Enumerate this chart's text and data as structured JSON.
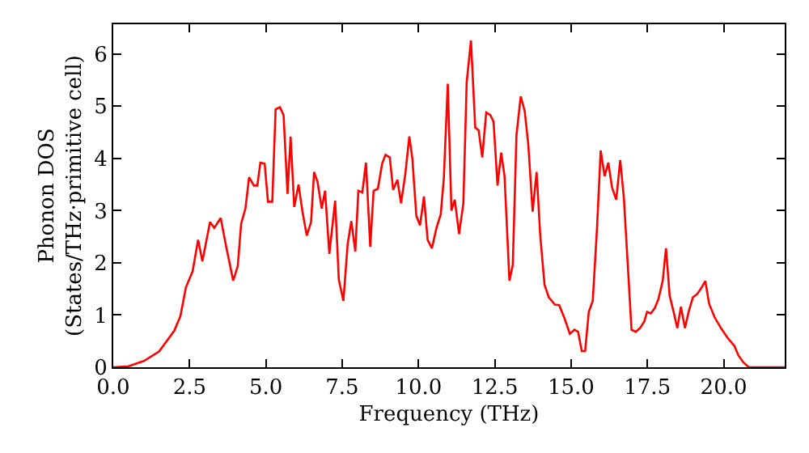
{
  "chart_data": {
    "type": "line",
    "xlabel": "Frequency (THz)",
    "ylabel": "Phonon DOS\n(States/THz·primitive cell)",
    "xlim": [
      0,
      22.0
    ],
    "ylim": [
      0,
      6.57
    ],
    "xticks": [
      {
        "value": 0,
        "label": "0.0"
      },
      2.5,
      {
        "value": 5,
        "label": "5.0"
      },
      7.5,
      {
        "value": 10,
        "label": "10.0"
      },
      12.5,
      {
        "value": 15,
        "label": "15.0"
      },
      17.5,
      {
        "value": 20,
        "label": "20.0"
      }
    ],
    "yticks": [
      0,
      1,
      2,
      3,
      4,
      5,
      6
    ],
    "marker": "none",
    "line_style": "solid",
    "series": [
      {
        "color": "#ff0000",
        "x": [
          0,
          0.5,
          1.0,
          1.5,
          2.0,
          2.2,
          2.38,
          2.6,
          2.78,
          2.92,
          3.17,
          3.31,
          3.52,
          3.7,
          3.93,
          4.08,
          4.19,
          4.33,
          4.45,
          4.61,
          4.72,
          4.82,
          4.96,
          5.07,
          5.21,
          5.32,
          5.46,
          5.58,
          5.71,
          5.81,
          5.93,
          6.07,
          6.2,
          6.34,
          6.48,
          6.58,
          6.69,
          6.83,
          6.94,
          7.08,
          7.27,
          7.39,
          7.54,
          7.68,
          7.8,
          7.93,
          8.03,
          8.16,
          8.28,
          8.42,
          8.53,
          8.67,
          8.81,
          8.92,
          9.06,
          9.17,
          9.31,
          9.43,
          9.57,
          9.7,
          9.8,
          9.93,
          10.05,
          10.18,
          10.3,
          10.44,
          10.59,
          10.73,
          10.83,
          10.96,
          11.08,
          11.19,
          11.33,
          11.47,
          11.58,
          11.72,
          11.86,
          11.97,
          12.09,
          12.22,
          12.36,
          12.46,
          12.59,
          12.71,
          12.82,
          12.98,
          13.09,
          13.21,
          13.35,
          13.48,
          13.6,
          13.74,
          13.87,
          13.99,
          14.13,
          14.27,
          14.47,
          14.61,
          14.79,
          14.96,
          15.11,
          15.23,
          15.35,
          15.46,
          15.58,
          15.71,
          15.85,
          15.97,
          16.1,
          16.22,
          16.34,
          16.48,
          16.61,
          16.73,
          16.86,
          16.98,
          17.12,
          17.26,
          17.4,
          17.49,
          17.61,
          17.74,
          17.86,
          18.0,
          18.11,
          18.23,
          18.36,
          18.48,
          18.6,
          18.73,
          18.85,
          18.99,
          19.13,
          19.28,
          19.4,
          19.52,
          19.7,
          19.91,
          20.12,
          20.35,
          20.48,
          20.65,
          20.83,
          22.0
        ],
        "values": [
          0,
          0.02,
          0.12,
          0.3,
          0.7,
          0.98,
          1.53,
          1.84,
          2.44,
          2.03,
          2.78,
          2.67,
          2.86,
          2.31,
          1.66,
          1.94,
          2.75,
          3.04,
          3.64,
          3.48,
          3.48,
          3.92,
          3.9,
          3.17,
          3.17,
          4.94,
          4.98,
          4.83,
          3.32,
          4.42,
          3.07,
          3.5,
          2.98,
          2.52,
          2.78,
          3.74,
          3.56,
          3.04,
          3.38,
          2.17,
          3.19,
          1.68,
          1.27,
          2.36,
          2.8,
          2.22,
          3.38,
          3.35,
          3.92,
          2.31,
          3.38,
          3.42,
          3.9,
          4.07,
          4.02,
          3.4,
          3.59,
          3.14,
          3.71,
          4.42,
          4.0,
          2.9,
          2.72,
          3.27,
          2.44,
          2.28,
          2.67,
          2.93,
          3.61,
          5.43,
          3.0,
          3.21,
          2.55,
          3.14,
          5.46,
          6.26,
          4.59,
          4.54,
          4.02,
          4.88,
          4.83,
          4.7,
          3.48,
          4.11,
          3.66,
          1.66,
          1.96,
          4.44,
          5.19,
          4.91,
          4.25,
          2.98,
          3.74,
          2.52,
          1.58,
          1.34,
          1.2,
          1.19,
          0.93,
          0.64,
          0.72,
          0.68,
          0.31,
          0.31,
          1.06,
          1.27,
          2.67,
          4.15,
          3.66,
          3.92,
          3.45,
          3.21,
          3.97,
          3.24,
          1.94,
          0.72,
          0.68,
          0.75,
          0.88,
          1.06,
          1.03,
          1.13,
          1.3,
          1.65,
          2.28,
          1.37,
          1.06,
          0.75,
          1.16,
          0.75,
          1.06,
          1.34,
          1.4,
          1.53,
          1.65,
          1.22,
          0.96,
          0.75,
          0.57,
          0.41,
          0.23,
          0.09,
          0,
          0
        ]
      }
    ]
  }
}
